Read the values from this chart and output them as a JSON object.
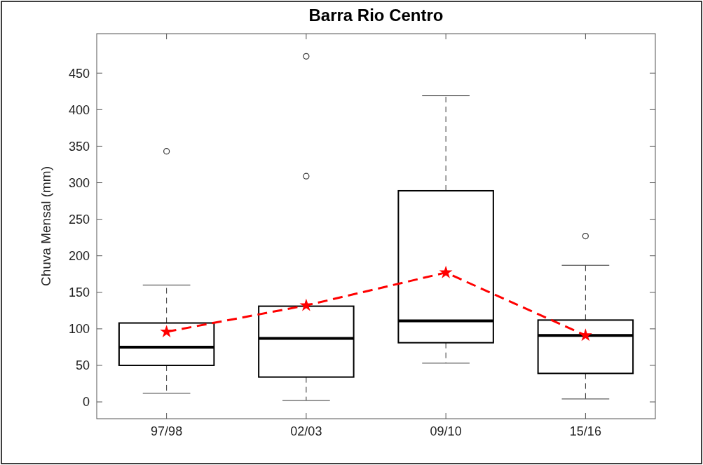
{
  "chart_data": {
    "type": "box",
    "title": "Barra Rio Centro",
    "ylabel": "Chuva Mensal (mm)",
    "categories": [
      "97/98",
      "02/03",
      "09/10",
      "15/16"
    ],
    "boxes": [
      {
        "low": 12,
        "q1": 50,
        "median": 75,
        "q3": 108,
        "high": 160,
        "outliers": [
          343
        ]
      },
      {
        "low": 2,
        "q1": 34,
        "median": 87,
        "q3": 131,
        "high": 131,
        "outliers": [
          309,
          473
        ]
      },
      {
        "low": 53,
        "q1": 81,
        "median": 111,
        "q3": 289,
        "high": 419
      },
      {
        "low": 4,
        "q1": 39,
        "median": 91,
        "q3": 112,
        "high": 187,
        "outliers": [
          227
        ]
      }
    ],
    "series": [
      {
        "type": "line",
        "color": "#ff0000",
        "values": [
          96,
          132,
          177,
          91
        ]
      }
    ],
    "marker": "star",
    "line_style": "dashed",
    "ylim": [
      -23,
      504
    ],
    "yticks": [
      0,
      50,
      100,
      150,
      200,
      250,
      300,
      350,
      400,
      450
    ],
    "grid": false
  }
}
